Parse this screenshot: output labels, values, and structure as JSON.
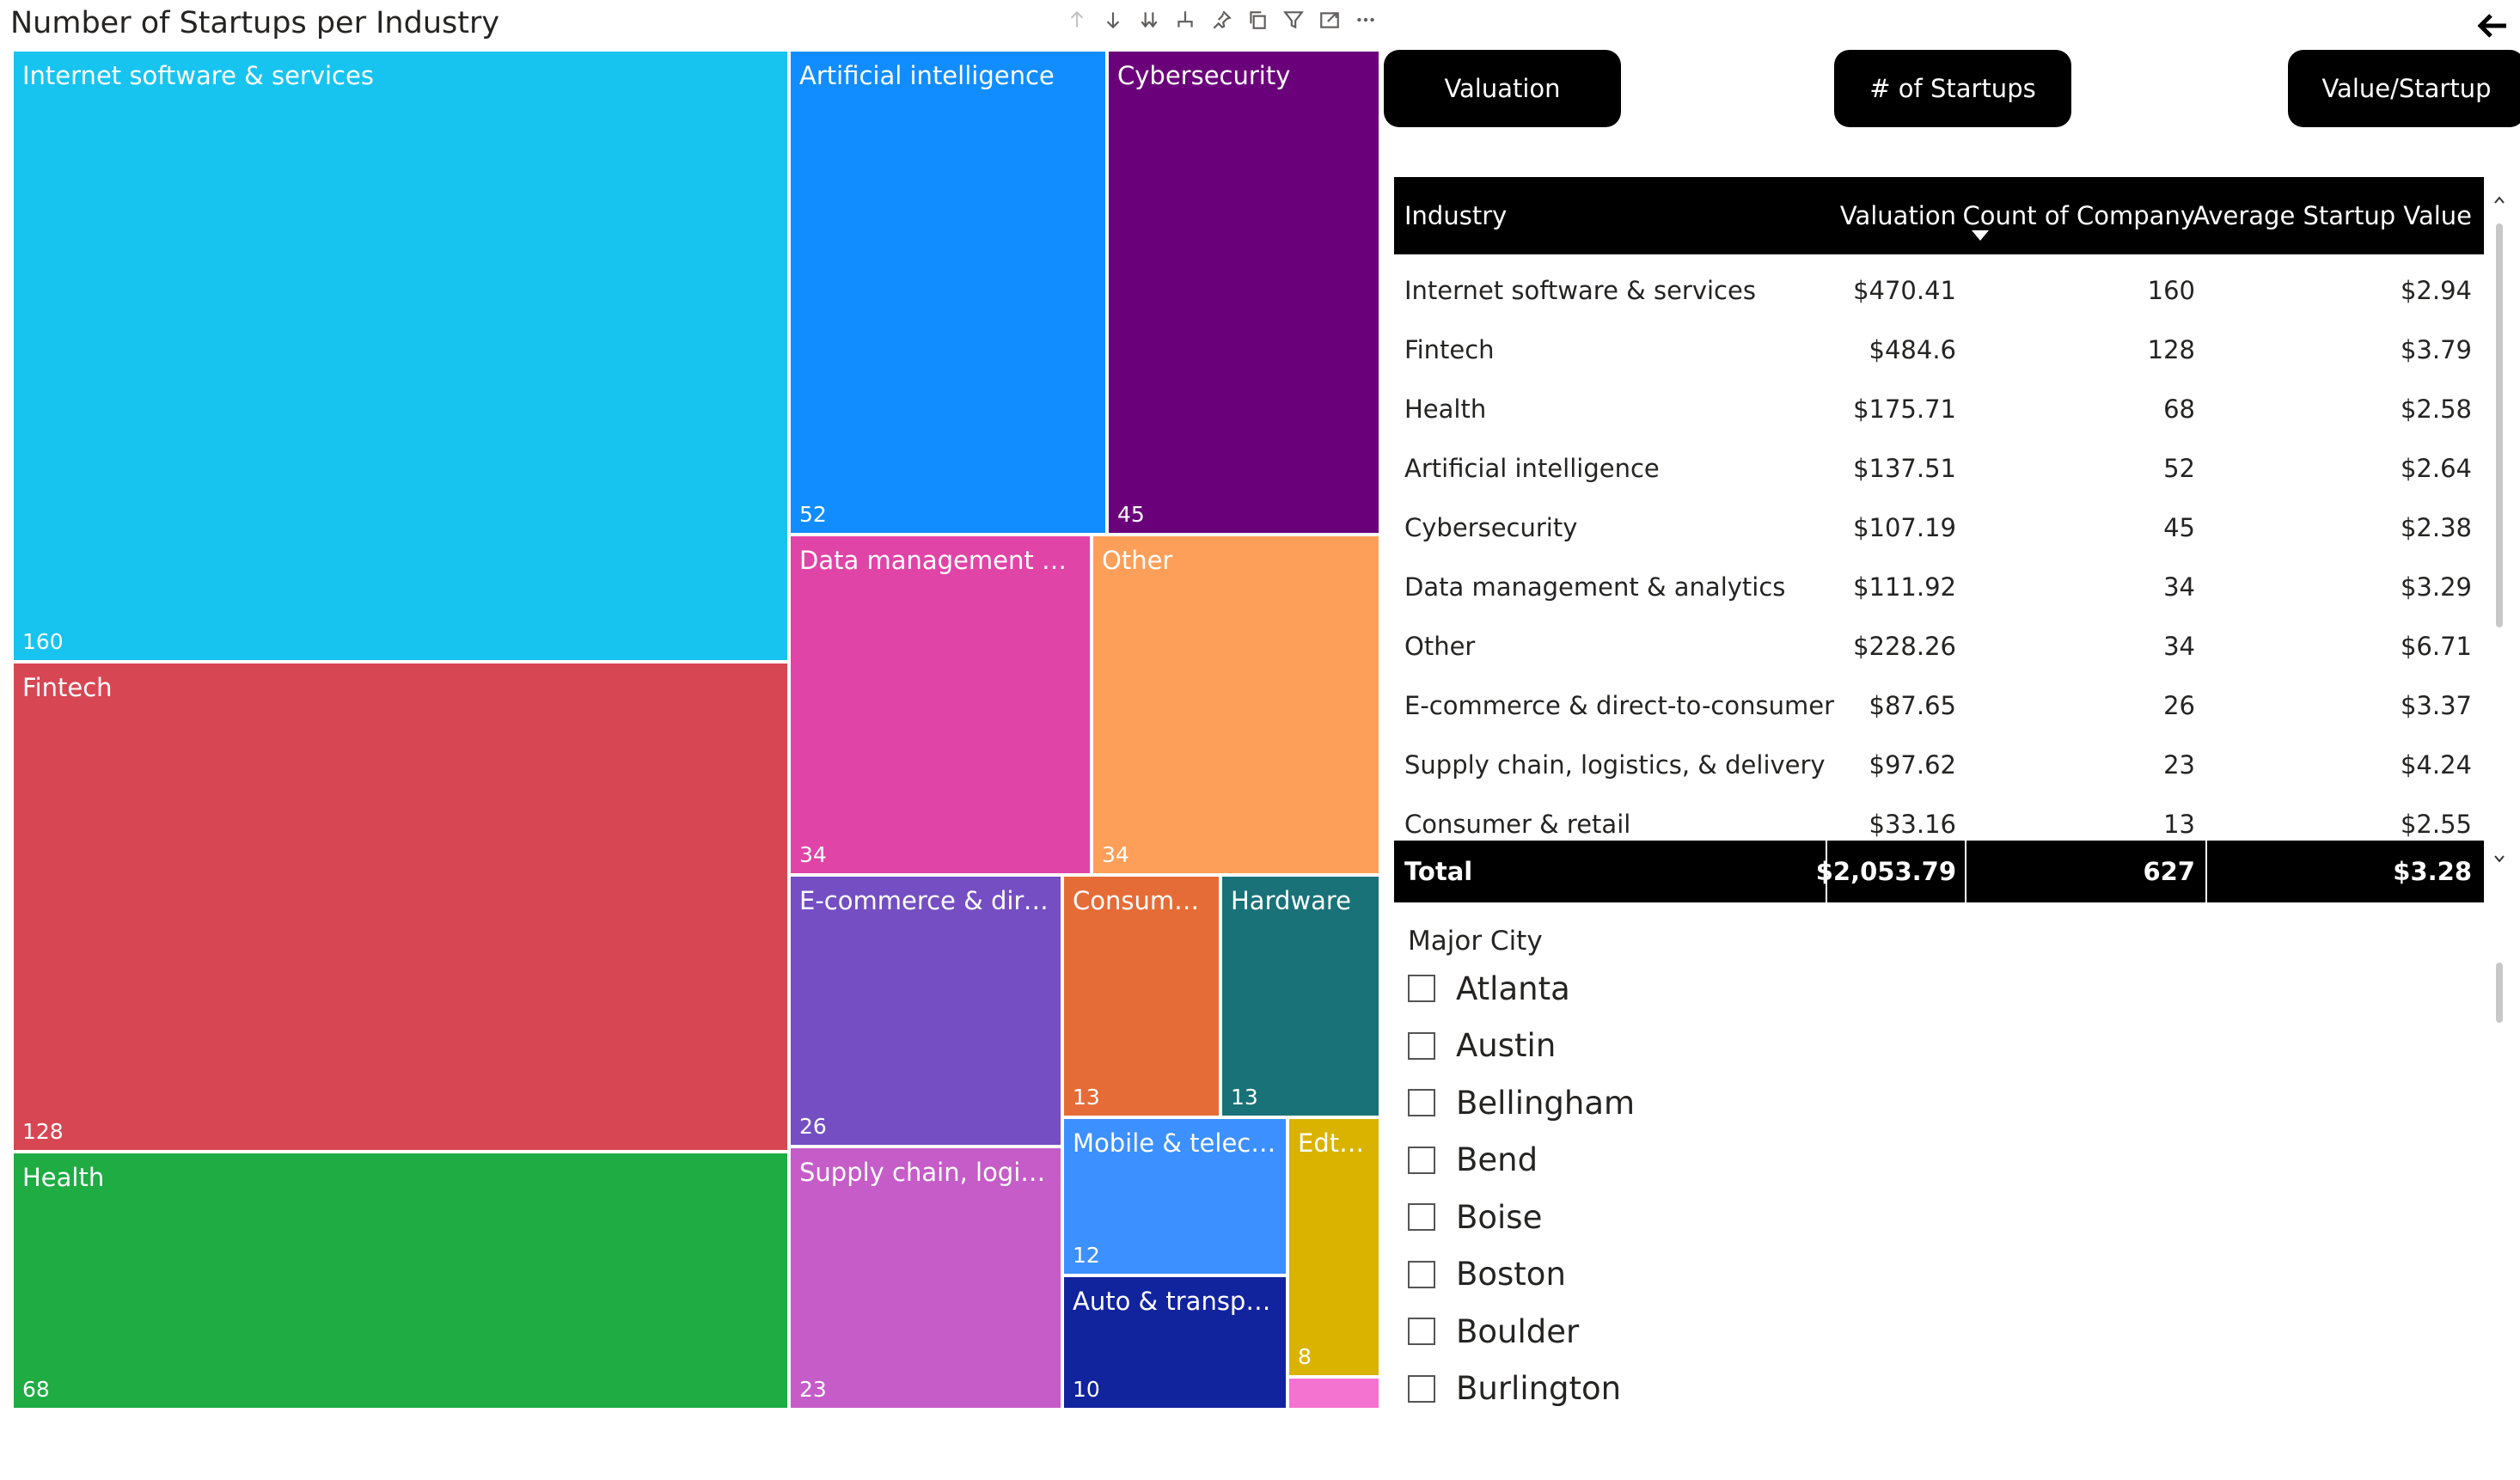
{
  "title": "Number of Startups per Industry",
  "header_icons": [
    "arrow-up-icon",
    "arrow-down-icon",
    "double-arrow-down-icon",
    "hierarchy-icon",
    "pin-icon",
    "copy-icon",
    "filter-icon",
    "focus-mode-icon",
    "more-options-icon"
  ],
  "back_icon": "back-arrow-icon",
  "treemap": {
    "tiles": [
      {
        "label": "Internet software & services",
        "value": "160",
        "color": "#17C4F0"
      },
      {
        "label": "Fintech",
        "value": "128",
        "color": "#D74753"
      },
      {
        "label": "Health",
        "value": "68",
        "color": "#1EAC43"
      },
      {
        "label": "Artificial intelligence",
        "value": "52",
        "color": "#118DFF"
      },
      {
        "label": "Cybersecurity",
        "value": "45",
        "color": "#6B007B"
      },
      {
        "label": "Data management & ...",
        "value": "34",
        "color": "#E044A7"
      },
      {
        "label": "Other",
        "value": "34",
        "color": "#FE9F59"
      },
      {
        "label": "E-commerce & dire...",
        "value": "26",
        "color": "#744EC2"
      },
      {
        "label": "Consumer...",
        "value": "13",
        "color": "#E66C37"
      },
      {
        "label": "Hardware",
        "value": "13",
        "color": "#197278"
      },
      {
        "label": "Supply chain, logisti...",
        "value": "23",
        "color": "#C55CC8"
      },
      {
        "label": "Mobile & teleco...",
        "value": "12",
        "color": "#3C90FF"
      },
      {
        "label": "Edte...",
        "value": "8",
        "color": "#D9B300"
      },
      {
        "label": "Auto & transpo...",
        "value": "10",
        "color": "#12239E"
      },
      {
        "label": "",
        "value": "",
        "color": "#F472D0"
      }
    ]
  },
  "buttons": {
    "valuation": "Valuation",
    "startups": "# of Startups",
    "value_per_startup": "Value/Startup"
  },
  "table": {
    "headers": {
      "industry": "Industry",
      "valuation": "Valuation",
      "count": "Count of Company",
      "average": "Average Startup Value"
    },
    "rows": [
      {
        "industry": "Internet software & services",
        "valuation": "$470.41",
        "count": "160",
        "average": "$2.94"
      },
      {
        "industry": "Fintech",
        "valuation": "$484.6",
        "count": "128",
        "average": "$3.79"
      },
      {
        "industry": "Health",
        "valuation": "$175.71",
        "count": "68",
        "average": "$2.58"
      },
      {
        "industry": "Artificial intelligence",
        "valuation": "$137.51",
        "count": "52",
        "average": "$2.64"
      },
      {
        "industry": "Cybersecurity",
        "valuation": "$107.19",
        "count": "45",
        "average": "$2.38"
      },
      {
        "industry": "Data management & analytics",
        "valuation": "$111.92",
        "count": "34",
        "average": "$3.29"
      },
      {
        "industry": "Other",
        "valuation": "$228.26",
        "count": "34",
        "average": "$6.71"
      },
      {
        "industry": "E-commerce & direct-to-consumer",
        "valuation": "$87.65",
        "count": "26",
        "average": "$3.37"
      },
      {
        "industry": "Supply chain, logistics, & delivery",
        "valuation": "$97.62",
        "count": "23",
        "average": "$4.24"
      },
      {
        "industry": "Consumer & retail",
        "valuation": "$33.16",
        "count": "13",
        "average": "$2.55"
      }
    ],
    "total": {
      "label": "Total",
      "valuation": "$2,053.79",
      "count": "627",
      "average": "$3.28"
    }
  },
  "slicer": {
    "title": "Major City",
    "items": [
      "Atlanta",
      "Austin",
      "Bellingham",
      "Bend",
      "Boise",
      "Boston",
      "Boulder",
      "Burlington"
    ]
  }
}
